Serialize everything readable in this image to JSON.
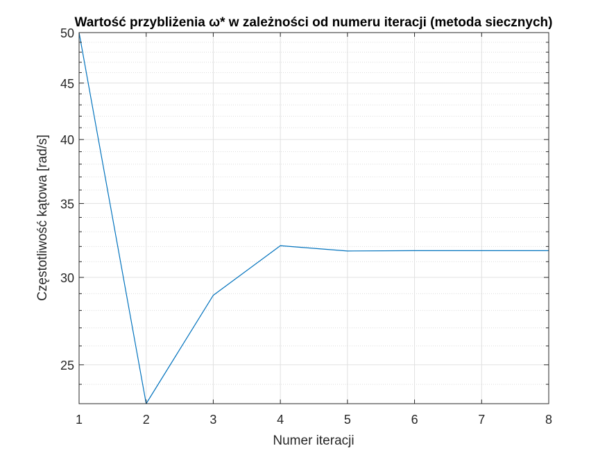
{
  "chart_data": {
    "type": "line",
    "title": "Wartość przybliżenia ω* w zależności od numeru iteracji (metoda siecznych)",
    "xlabel": "Numer iteracji",
    "ylabel": "Częstotliwość kątowa [rad/s]",
    "x_scale": "linear",
    "y_scale": "log",
    "xlim": [
      1,
      8
    ],
    "ylim": [
      23.05,
      50
    ],
    "grid": "major and minor",
    "x_ticks": [
      1,
      2,
      3,
      4,
      5,
      6,
      7,
      8
    ],
    "x_tick_labels": [
      "1",
      "2",
      "3",
      "4",
      "5",
      "6",
      "7",
      "8"
    ],
    "y_ticks": [
      25,
      30,
      35,
      40,
      45,
      50
    ],
    "y_tick_labels": [
      "25",
      "30",
      "35",
      "40",
      "45",
      "50"
    ],
    "y_minor_ticks": [
      24,
      26,
      27,
      28,
      29,
      31,
      32,
      33,
      34,
      36,
      37,
      38,
      39,
      41,
      42,
      43,
      44,
      46,
      47,
      48,
      49
    ],
    "series": [
      {
        "color": "#0072BD",
        "x": [
          1,
          2,
          3,
          4,
          5,
          6,
          7,
          8
        ],
        "y": [
          50,
          23.05,
          28.9,
          32.05,
          31.7,
          31.72,
          31.72,
          31.72
        ]
      }
    ]
  }
}
